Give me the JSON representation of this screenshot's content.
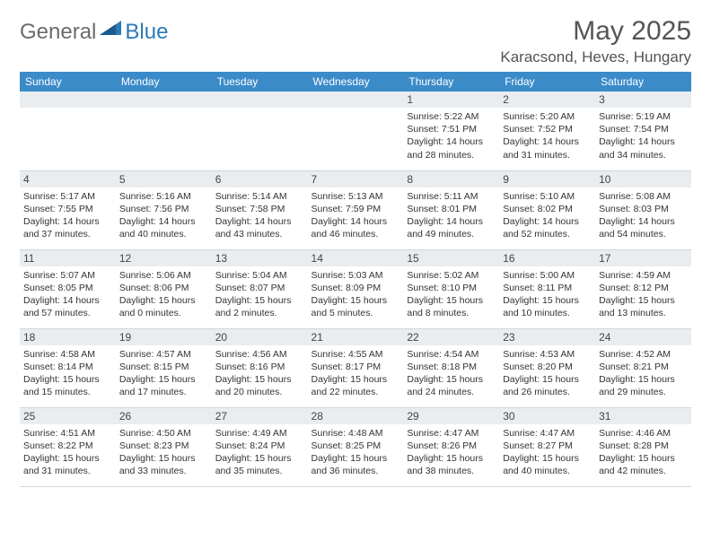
{
  "logo": {
    "general": "General",
    "blue": "Blue"
  },
  "title": "May 2025",
  "location": "Karacsond, Heves, Hungary",
  "colors": {
    "header_bg": "#3b8bc9",
    "header_text": "#ffffff",
    "daynum_bg": "#e9edf0",
    "border": "#cfd6dc",
    "logo_gray": "#6b6b6b",
    "logo_blue": "#2a7ab8",
    "title_color": "#545454"
  },
  "days_of_week": [
    "Sunday",
    "Monday",
    "Tuesday",
    "Wednesday",
    "Thursday",
    "Friday",
    "Saturday"
  ],
  "weeks": [
    [
      null,
      null,
      null,
      null,
      {
        "n": "1",
        "sr": "5:22 AM",
        "ss": "7:51 PM",
        "dl": "14 hours and 28 minutes."
      },
      {
        "n": "2",
        "sr": "5:20 AM",
        "ss": "7:52 PM",
        "dl": "14 hours and 31 minutes."
      },
      {
        "n": "3",
        "sr": "5:19 AM",
        "ss": "7:54 PM",
        "dl": "14 hours and 34 minutes."
      }
    ],
    [
      {
        "n": "4",
        "sr": "5:17 AM",
        "ss": "7:55 PM",
        "dl": "14 hours and 37 minutes."
      },
      {
        "n": "5",
        "sr": "5:16 AM",
        "ss": "7:56 PM",
        "dl": "14 hours and 40 minutes."
      },
      {
        "n": "6",
        "sr": "5:14 AM",
        "ss": "7:58 PM",
        "dl": "14 hours and 43 minutes."
      },
      {
        "n": "7",
        "sr": "5:13 AM",
        "ss": "7:59 PM",
        "dl": "14 hours and 46 minutes."
      },
      {
        "n": "8",
        "sr": "5:11 AM",
        "ss": "8:01 PM",
        "dl": "14 hours and 49 minutes."
      },
      {
        "n": "9",
        "sr": "5:10 AM",
        "ss": "8:02 PM",
        "dl": "14 hours and 52 minutes."
      },
      {
        "n": "10",
        "sr": "5:08 AM",
        "ss": "8:03 PM",
        "dl": "14 hours and 54 minutes."
      }
    ],
    [
      {
        "n": "11",
        "sr": "5:07 AM",
        "ss": "8:05 PM",
        "dl": "14 hours and 57 minutes."
      },
      {
        "n": "12",
        "sr": "5:06 AM",
        "ss": "8:06 PM",
        "dl": "15 hours and 0 minutes."
      },
      {
        "n": "13",
        "sr": "5:04 AM",
        "ss": "8:07 PM",
        "dl": "15 hours and 2 minutes."
      },
      {
        "n": "14",
        "sr": "5:03 AM",
        "ss": "8:09 PM",
        "dl": "15 hours and 5 minutes."
      },
      {
        "n": "15",
        "sr": "5:02 AM",
        "ss": "8:10 PM",
        "dl": "15 hours and 8 minutes."
      },
      {
        "n": "16",
        "sr": "5:00 AM",
        "ss": "8:11 PM",
        "dl": "15 hours and 10 minutes."
      },
      {
        "n": "17",
        "sr": "4:59 AM",
        "ss": "8:12 PM",
        "dl": "15 hours and 13 minutes."
      }
    ],
    [
      {
        "n": "18",
        "sr": "4:58 AM",
        "ss": "8:14 PM",
        "dl": "15 hours and 15 minutes."
      },
      {
        "n": "19",
        "sr": "4:57 AM",
        "ss": "8:15 PM",
        "dl": "15 hours and 17 minutes."
      },
      {
        "n": "20",
        "sr": "4:56 AM",
        "ss": "8:16 PM",
        "dl": "15 hours and 20 minutes."
      },
      {
        "n": "21",
        "sr": "4:55 AM",
        "ss": "8:17 PM",
        "dl": "15 hours and 22 minutes."
      },
      {
        "n": "22",
        "sr": "4:54 AM",
        "ss": "8:18 PM",
        "dl": "15 hours and 24 minutes."
      },
      {
        "n": "23",
        "sr": "4:53 AM",
        "ss": "8:20 PM",
        "dl": "15 hours and 26 minutes."
      },
      {
        "n": "24",
        "sr": "4:52 AM",
        "ss": "8:21 PM",
        "dl": "15 hours and 29 minutes."
      }
    ],
    [
      {
        "n": "25",
        "sr": "4:51 AM",
        "ss": "8:22 PM",
        "dl": "15 hours and 31 minutes."
      },
      {
        "n": "26",
        "sr": "4:50 AM",
        "ss": "8:23 PM",
        "dl": "15 hours and 33 minutes."
      },
      {
        "n": "27",
        "sr": "4:49 AM",
        "ss": "8:24 PM",
        "dl": "15 hours and 35 minutes."
      },
      {
        "n": "28",
        "sr": "4:48 AM",
        "ss": "8:25 PM",
        "dl": "15 hours and 36 minutes."
      },
      {
        "n": "29",
        "sr": "4:47 AM",
        "ss": "8:26 PM",
        "dl": "15 hours and 38 minutes."
      },
      {
        "n": "30",
        "sr": "4:47 AM",
        "ss": "8:27 PM",
        "dl": "15 hours and 40 minutes."
      },
      {
        "n": "31",
        "sr": "4:46 AM",
        "ss": "8:28 PM",
        "dl": "15 hours and 42 minutes."
      }
    ]
  ],
  "labels": {
    "sunrise": "Sunrise: ",
    "sunset": "Sunset: ",
    "daylight": "Daylight: "
  }
}
